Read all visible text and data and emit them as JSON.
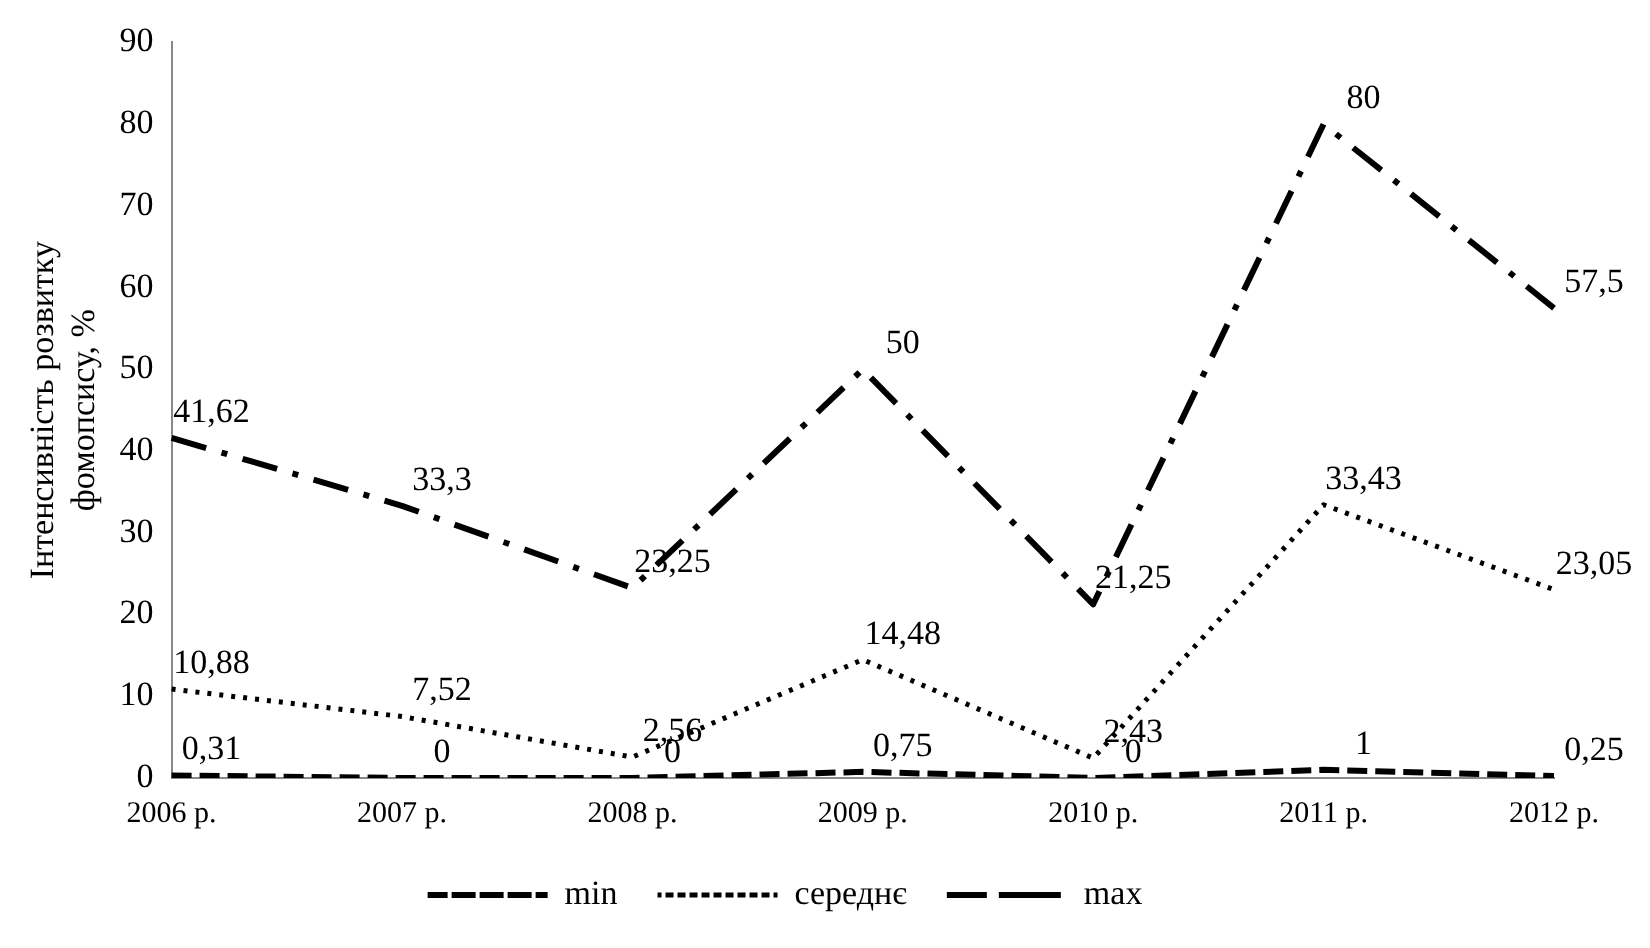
{
  "chart_data": {
    "type": "line",
    "ylabel": "Інтенсивність розвитку фомопсису, %",
    "categories": [
      "2006 р.",
      "2007 р.",
      "2008 р.",
      "2009 р.",
      "2010 р.",
      "2011 р.",
      "2012 р."
    ],
    "series": [
      {
        "name": "min",
        "color": "#000000",
        "line_style": "dashed",
        "values": [
          0.31,
          0,
          0,
          0.75,
          0,
          1,
          0.25
        ],
        "value_labels": [
          "0,31",
          "0",
          "0",
          "0,75",
          "0",
          "1",
          "0,25"
        ]
      },
      {
        "name": "середнє",
        "color": "#000000",
        "line_style": "dotted",
        "values": [
          10.88,
          7.52,
          2.56,
          14.48,
          2.43,
          33.43,
          23.05
        ],
        "value_labels": [
          "10,88",
          "7,52",
          "2,56",
          "14,48",
          "2,43",
          "33,43",
          "23,05"
        ]
      },
      {
        "name": "max",
        "color": "#000000",
        "line_style": "dashdot",
        "values": [
          41.62,
          33.3,
          23.25,
          50,
          21.25,
          80,
          57.5
        ],
        "value_labels": [
          "41,62",
          "33,3",
          "23,25",
          "50",
          "21,25",
          "80",
          "57,5"
        ]
      }
    ],
    "ylim": [
      0,
      90
    ],
    "yticks": [
      0,
      10,
      20,
      30,
      40,
      50,
      60,
      70,
      80,
      90
    ],
    "grid": false,
    "legend": "bottom",
    "marker": "none"
  }
}
